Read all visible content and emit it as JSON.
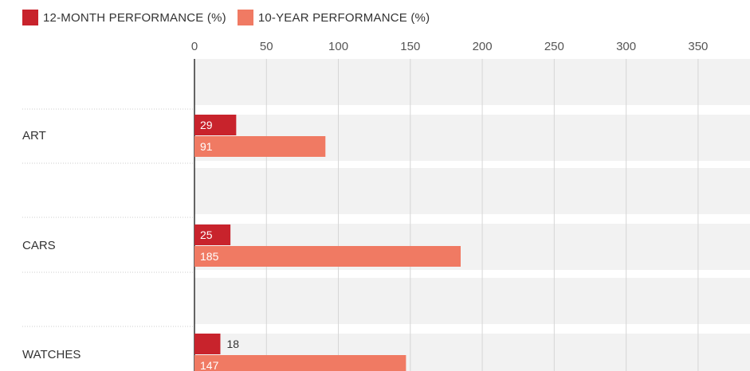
{
  "chart_data": {
    "type": "bar",
    "orientation": "horizontal",
    "categories": [
      "ART",
      "CARS",
      "WATCHES"
    ],
    "series": [
      {
        "name": "12-MONTH PERFORMANCE (%)",
        "values": [
          29,
          25,
          18
        ],
        "color": "#c8232c"
      },
      {
        "name": "10-YEAR PERFORMANCE (%)",
        "values": [
          91,
          185,
          147
        ],
        "color": "#f07a63"
      }
    ],
    "xticks": [
      0,
      50,
      100,
      150,
      200,
      250,
      300,
      350
    ],
    "xlim": [
      0,
      370
    ],
    "grid": true,
    "legend": "top-left",
    "title": "",
    "xlabel": "",
    "ylabel": ""
  }
}
